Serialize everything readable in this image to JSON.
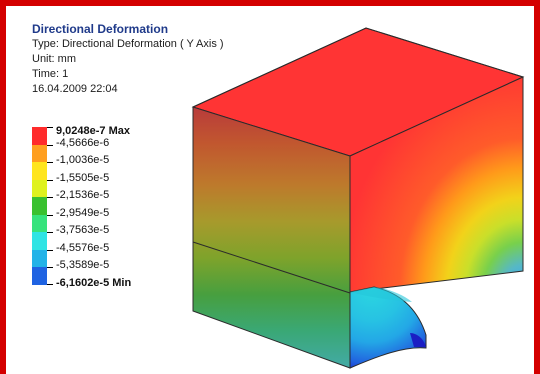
{
  "header": {
    "title": "Directional Deformation",
    "type": "Type: Directional Deformation ( Y Axis )",
    "unit": "Unit: mm",
    "time": "Time: 1",
    "datetime": "16.04.2009 22:04"
  },
  "legend": {
    "colors": [
      "#ff3333",
      "#ff9a1a",
      "#ffe61a",
      "#d9f21f",
      "#2fbf2f",
      "#33e07a",
      "#2fe0e0",
      "#24b6e6",
      "#1f5fe0",
      "#1f2ad6"
    ],
    "labels": [
      {
        "text": "9,0248e-7 Max",
        "bold": true
      },
      {
        "text": "-4,5666e-6",
        "bold": false
      },
      {
        "text": "-1,0036e-5",
        "bold": false
      },
      {
        "text": "-1,5505e-5",
        "bold": false
      },
      {
        "text": "-2,1536e-5",
        "bold": false
      },
      {
        "text": "-2,9549e-5",
        "bold": false
      },
      {
        "text": "-3,7563e-5",
        "bold": false
      },
      {
        "text": "-4,5576e-5",
        "bold": false
      },
      {
        "text": "-5,3589e-5",
        "bold": false
      },
      {
        "text": "-6,1602e-5 Min",
        "bold": true
      }
    ]
  }
}
